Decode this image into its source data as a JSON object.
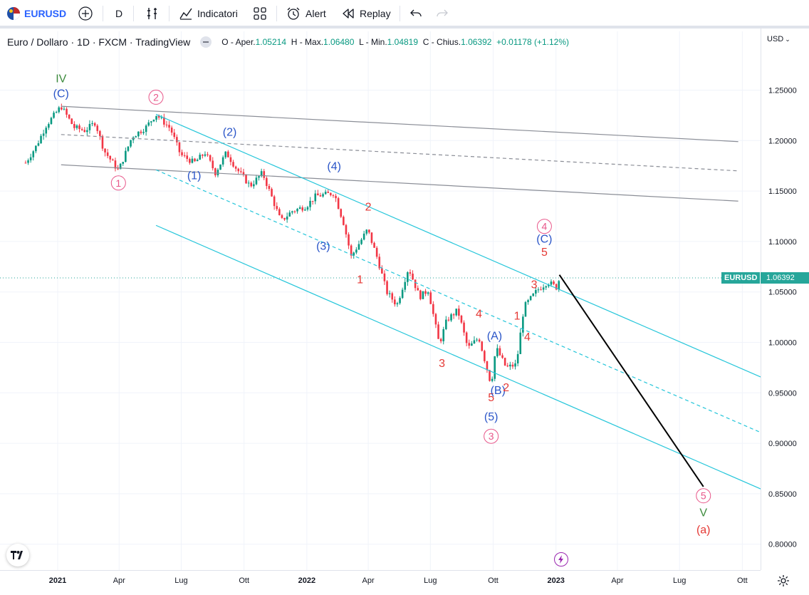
{
  "toolbar": {
    "symbol": "EURUSD",
    "interval": "D",
    "indicators_label": "Indicatori",
    "alert_label": "Alert",
    "replay_label": "Replay"
  },
  "legend": {
    "title": "Euro / Dollaro · 1D · FXCM · TradingView",
    "o_label": "O - Aper.",
    "o_value": "1.05214",
    "h_label": "H - Max.",
    "h_value": "1.06480",
    "l_label": "L - Min.",
    "l_value": "1.04819",
    "c_label": "C - Chius.",
    "c_value": "1.06392",
    "change": "+0.01178 (+1.12%)"
  },
  "currency": "USD",
  "colors": {
    "up": "#089981",
    "down": "#f23645",
    "channel": "#26c6da",
    "wave_red": "#e53935",
    "wave_blue": "#2a55c8",
    "wave_pink": "#e8578a",
    "wave_green": "#3d8b3d"
  },
  "chart_data": {
    "type": "candlestick",
    "symbol": "EURUSD",
    "timeframe": "1D",
    "x_ticks": [
      "2021",
      "Apr",
      "Lug",
      "Ott",
      "2022",
      "Apr",
      "Lug",
      "Ott",
      "2023",
      "Apr",
      "Lug",
      "Ott"
    ],
    "x_tick_dates": [
      "2021-01-01",
      "2021-04-01",
      "2021-07-01",
      "2021-10-01",
      "2022-01-01",
      "2022-04-01",
      "2022-07-01",
      "2022-10-01",
      "2023-01-01",
      "2023-04-01",
      "2023-07-01",
      "2023-10-01"
    ],
    "y_ticks": [
      "1.25000",
      "1.20000",
      "1.15000",
      "1.10000",
      "1.05000",
      "1.00000",
      "0.95000",
      "0.90000",
      "0.85000",
      "0.80000"
    ],
    "ylim": [
      0.785,
      1.295
    ],
    "last_price": {
      "label": "EURUSD",
      "value": "1.06392"
    },
    "price_path": [
      [
        "2020-11-15",
        1.178
      ],
      [
        "2020-12-01",
        1.195
      ],
      [
        "2020-12-15",
        1.215
      ],
      [
        "2021-01-06",
        1.234
      ],
      [
        "2021-01-25",
        1.213
      ],
      [
        "2021-02-10",
        1.21
      ],
      [
        "2021-02-25",
        1.218
      ],
      [
        "2021-03-10",
        1.19
      ],
      [
        "2021-03-31",
        1.17
      ],
      [
        "2021-04-20",
        1.204
      ],
      [
        "2021-05-10",
        1.213
      ],
      [
        "2021-05-25",
        1.226
      ],
      [
        "2021-06-15",
        1.212
      ],
      [
        "2021-06-30",
        1.186
      ],
      [
        "2021-07-20",
        1.178
      ],
      [
        "2021-08-05",
        1.188
      ],
      [
        "2021-08-20",
        1.168
      ],
      [
        "2021-09-05",
        1.188
      ],
      [
        "2021-09-20",
        1.172
      ],
      [
        "2021-10-10",
        1.155
      ],
      [
        "2021-10-28",
        1.168
      ],
      [
        "2021-11-10",
        1.145
      ],
      [
        "2021-11-24",
        1.12
      ],
      [
        "2021-12-10",
        1.13
      ],
      [
        "2021-12-31",
        1.135
      ],
      [
        "2022-01-14",
        1.145
      ],
      [
        "2022-02-10",
        1.148
      ],
      [
        "2022-02-24",
        1.118
      ],
      [
        "2022-03-07",
        1.085
      ],
      [
        "2022-03-31",
        1.112
      ],
      [
        "2022-04-15",
        1.082
      ],
      [
        "2022-04-28",
        1.05
      ],
      [
        "2022-05-13",
        1.037
      ],
      [
        "2022-05-30",
        1.074
      ],
      [
        "2022-06-15",
        1.045
      ],
      [
        "2022-06-28",
        1.052
      ],
      [
        "2022-07-14",
        0.998
      ],
      [
        "2022-07-25",
        1.022
      ],
      [
        "2022-08-10",
        1.032
      ],
      [
        "2022-08-25",
        0.994
      ],
      [
        "2022-09-10",
        1.005
      ],
      [
        "2022-09-28",
        0.958
      ],
      [
        "2022-10-05",
        0.995
      ],
      [
        "2022-10-20",
        0.975
      ],
      [
        "2022-11-04",
        0.978
      ],
      [
        "2022-11-15",
        1.035
      ],
      [
        "2022-12-05",
        1.052
      ],
      [
        "2022-12-20",
        1.06
      ],
      [
        "2023-01-03",
        1.054
      ],
      [
        "2023-01-06",
        1.064
      ]
    ],
    "open": 1.05214,
    "high": 1.0648,
    "low": 1.04819,
    "close": 1.06392,
    "change": 0.01178,
    "change_pct": 1.12,
    "trendlines": [
      {
        "color": "gray",
        "style": "solid",
        "from": [
          "2021-01-06",
          1.234
        ],
        "to": [
          "2023-09-25",
          1.199
        ]
      },
      {
        "color": "gray",
        "style": "dashed",
        "from": [
          "2021-01-06",
          1.206
        ],
        "to": [
          "2023-09-25",
          1.17
        ]
      },
      {
        "color": "gray",
        "style": "solid",
        "from": [
          "2021-01-06",
          1.176
        ],
        "to": [
          "2023-09-25",
          1.14
        ]
      },
      {
        "color": "cyan",
        "style": "solid",
        "from": [
          "2021-05-25",
          1.226
        ],
        "to": [
          "2023-11-30",
          0.956
        ]
      },
      {
        "color": "cyan",
        "style": "dashed",
        "from": [
          "2021-05-25",
          1.171
        ],
        "to": [
          "2023-11-30",
          0.901
        ]
      },
      {
        "color": "cyan",
        "style": "solid",
        "from": [
          "2021-05-25",
          1.116
        ],
        "to": [
          "2023-11-30",
          0.845
        ]
      },
      {
        "color": "black",
        "style": "solid",
        "from": [
          "2023-01-06",
          1.067
        ],
        "to": [
          "2023-08-05",
          0.857
        ]
      }
    ],
    "wave_labels": [
      {
        "text": "IV",
        "date": "2021-01-06",
        "price": 1.262,
        "color": "green"
      },
      {
        "text": "(C)",
        "date": "2021-01-06",
        "price": 1.247,
        "color": "blue"
      },
      {
        "text": "2",
        "date": "2021-05-25",
        "price": 1.243,
        "color": "pink",
        "circled": true
      },
      {
        "text": "1",
        "date": "2021-03-31",
        "price": 1.158,
        "color": "pink",
        "circled": true
      },
      {
        "text": "(1)",
        "date": "2021-07-20",
        "price": 1.166,
        "color": "blue"
      },
      {
        "text": "(2)",
        "date": "2021-09-10",
        "price": 1.209,
        "color": "blue"
      },
      {
        "text": "(4)",
        "date": "2022-02-10",
        "price": 1.175,
        "color": "blue"
      },
      {
        "text": "(3)",
        "date": "2022-01-25",
        "price": 1.096,
        "color": "blue"
      },
      {
        "text": "2",
        "date": "2022-04-01",
        "price": 1.135,
        "color": "red"
      },
      {
        "text": "1",
        "date": "2022-03-20",
        "price": 1.063,
        "color": "red"
      },
      {
        "text": "3",
        "date": "2022-07-18",
        "price": 0.98,
        "color": "red"
      },
      {
        "text": "4",
        "date": "2022-09-10",
        "price": 1.029,
        "color": "red"
      },
      {
        "text": "(A)",
        "date": "2022-10-03",
        "price": 1.007,
        "color": "blue"
      },
      {
        "text": "5",
        "date": "2022-09-28",
        "price": 0.946,
        "color": "red"
      },
      {
        "text": "(B)",
        "date": "2022-10-08",
        "price": 0.953,
        "color": "blue"
      },
      {
        "text": "2",
        "date": "2022-10-20",
        "price": 0.956,
        "color": "red"
      },
      {
        "text": "(5)",
        "date": "2022-09-28",
        "price": 0.927,
        "color": "blue"
      },
      {
        "text": "3",
        "date": "2022-09-28",
        "price": 0.907,
        "color": "pink",
        "circled": true
      },
      {
        "text": "1",
        "date": "2022-11-05",
        "price": 1.027,
        "color": "red"
      },
      {
        "text": "4",
        "date": "2022-11-20",
        "price": 1.006,
        "color": "red"
      },
      {
        "text": "3",
        "date": "2022-11-30",
        "price": 1.058,
        "color": "red"
      },
      {
        "text": "5",
        "date": "2022-12-15",
        "price": 1.09,
        "color": "red"
      },
      {
        "text": "(C)",
        "date": "2022-12-15",
        "price": 1.103,
        "color": "blue"
      },
      {
        "text": "4",
        "date": "2022-12-15",
        "price": 1.115,
        "color": "pink",
        "circled": true
      },
      {
        "text": "5",
        "date": "2023-08-05",
        "price": 0.848,
        "color": "pink",
        "circled": true
      },
      {
        "text": "V",
        "date": "2023-08-05",
        "price": 0.832,
        "color": "green"
      },
      {
        "text": "(a)",
        "date": "2023-08-05",
        "price": 0.815,
        "color": "red"
      }
    ]
  }
}
